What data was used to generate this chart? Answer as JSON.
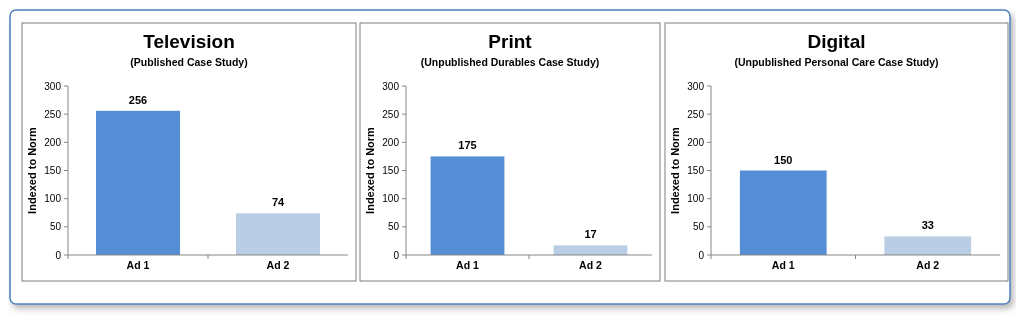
{
  "chart_data": [
    {
      "type": "bar",
      "title": "Television",
      "subtitle": "(Published Case Study)",
      "ylabel": "Indexed to Norm",
      "categories": [
        "Ad 1",
        "Ad 2"
      ],
      "values": [
        256,
        74
      ],
      "colors": [
        "#558ed5",
        "#b9cde5"
      ],
      "ylim": [
        0,
        300
      ],
      "yticks": [
        0,
        50,
        100,
        150,
        200,
        250,
        300
      ],
      "data_labels": true
    },
    {
      "type": "bar",
      "title": "Print",
      "subtitle": "(Unpublished Durables Case Study)",
      "ylabel": "Indexed to Norm",
      "categories": [
        "Ad 1",
        "Ad 2"
      ],
      "values": [
        175,
        17
      ],
      "colors": [
        "#558ed5",
        "#b9cde5"
      ],
      "ylim": [
        0,
        300
      ],
      "yticks": [
        0,
        50,
        100,
        150,
        200,
        250,
        300
      ],
      "data_labels": true
    },
    {
      "type": "bar",
      "title": "Digital",
      "subtitle": "(Unpublished Personal Care Case Study)",
      "ylabel": "Indexed to Norm",
      "categories": [
        "Ad 1",
        "Ad 2"
      ],
      "values": [
        150,
        33
      ],
      "colors": [
        "#558ed5",
        "#b9cde5"
      ],
      "ylim": [
        0,
        300
      ],
      "yticks": [
        0,
        50,
        100,
        150,
        200,
        250,
        300
      ],
      "data_labels": true
    }
  ]
}
